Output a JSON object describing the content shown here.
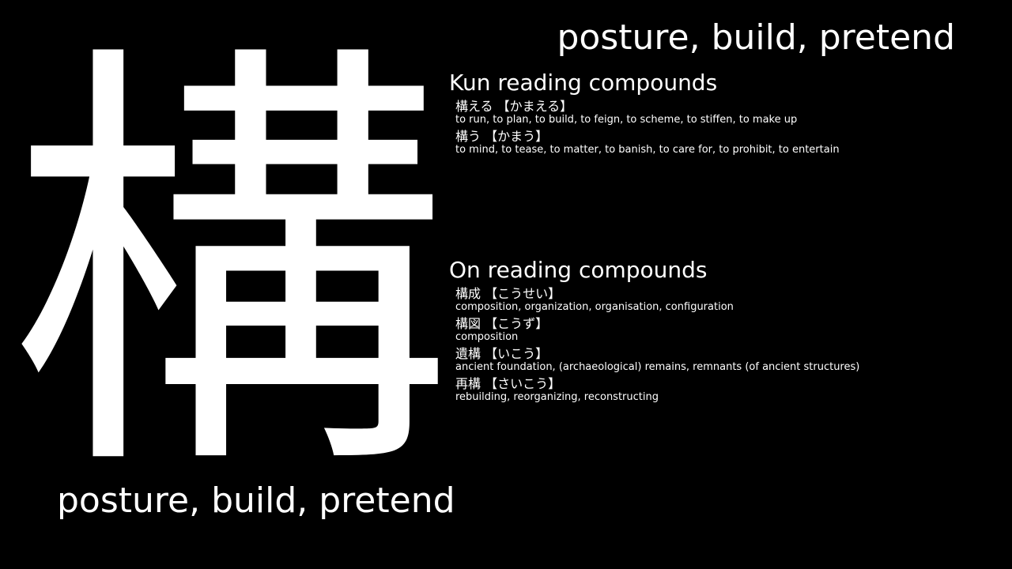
{
  "kanji": "構",
  "meaning": "posture, build, pretend",
  "kun": {
    "title": "Kun reading compounds",
    "entries": [
      {
        "word": "構える",
        "reading": "【かまえる】",
        "gloss": "to run, to plan, to build, to feign, to scheme, to stiffen, to make up"
      },
      {
        "word": "構う",
        "reading": "【かまう】",
        "gloss": "to mind, to tease, to matter, to banish, to care for, to prohibit, to entertain"
      }
    ]
  },
  "on": {
    "title": "On reading compounds",
    "entries": [
      {
        "word": "構成",
        "reading": "【こうせい】",
        "gloss": "composition, organization, organisation, configuration"
      },
      {
        "word": "構図",
        "reading": "【こうず】",
        "gloss": "composition"
      },
      {
        "word": "遺構",
        "reading": "【いこう】",
        "gloss": "ancient foundation, (archaeological) remains, remnants (of ancient structures)"
      },
      {
        "word": "再構",
        "reading": "【さいこう】",
        "gloss": "rebuilding, reorganizing, reconstructing"
      }
    ]
  }
}
